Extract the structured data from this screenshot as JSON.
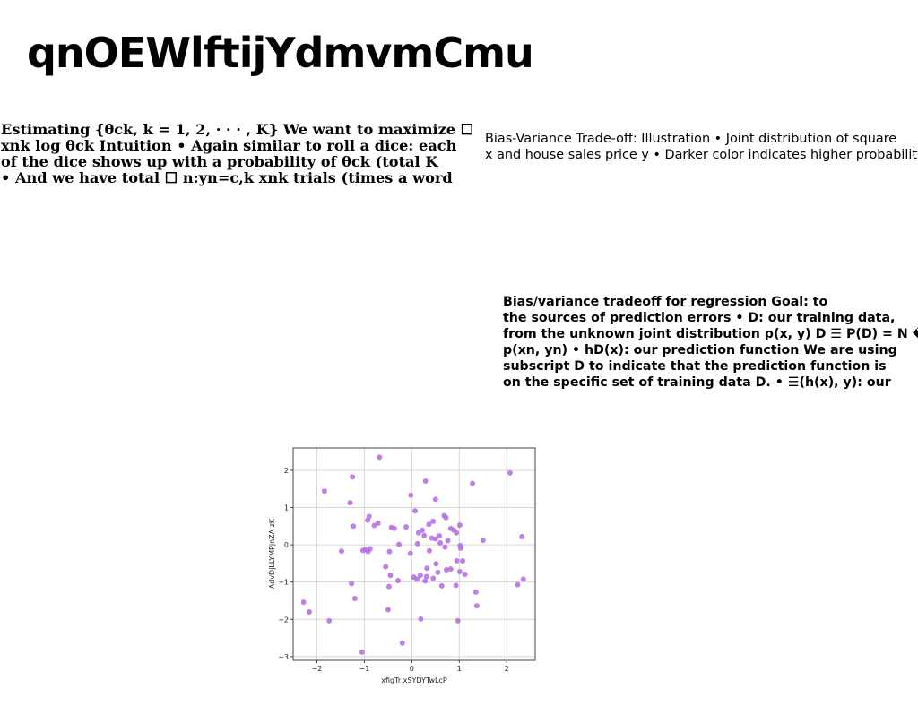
{
  "title": "qnOEWlftijYdmvmCmu",
  "paragraphs": {
    "left": [
      "Estimating {θck, k = 1, 2, · · · , K} We want to maximize ☐",
      "xnk log θck Intuition • Again similar to roll a dice: each",
      "of the dice shows up with a probability of θck (total K",
      "• And we have total ☐ n:yn=c,k xnk trials (times a word"
    ],
    "right_top": [
      "Bias-Variance Trade-off: Illustration • Joint distribution of square",
      "x and house sales price y • Darker color indicates higher probability"
    ],
    "right_mid": [
      "Bias/variance tradeoff for regression Goal: to",
      "the sources of prediction errors • D: our training data,",
      "from the unknown joint distribution p(x, y) D ☰ P(D) = N �",
      "p(xn, yn) • hD(x): our prediction function We are using",
      "subscript D to indicate that the prediction function is",
      "on the specific set of training data D. • ☰(h(x), y): our"
    ]
  },
  "chart_data": {
    "type": "scatter",
    "xlabel": "xfigTr xSYDYTwLcP",
    "ylabel": "AdvDjLLYMPjnZA zK",
    "xlim": [
      -2.5,
      2.6
    ],
    "ylim": [
      -3.1,
      2.6
    ],
    "xticks": [
      -2,
      -1,
      0,
      1,
      2
    ],
    "yticks": [
      -3,
      -2,
      -1,
      0,
      1,
      2
    ],
    "grid": true,
    "point_color": "#b36ae2",
    "points": [
      [
        -0.68,
        2.35
      ],
      [
        -1.25,
        1.82
      ],
      [
        -1.84,
        1.44
      ],
      [
        -1.3,
        1.13
      ],
      [
        -0.02,
        1.33
      ],
      [
        0.29,
        1.71
      ],
      [
        0.5,
        1.22
      ],
      [
        1.28,
        1.65
      ],
      [
        2.07,
        1.93
      ],
      [
        0.07,
        0.91
      ],
      [
        -0.9,
        0.76
      ],
      [
        -0.93,
        0.66
      ],
      [
        -0.79,
        0.52
      ],
      [
        -0.71,
        0.58
      ],
      [
        -0.43,
        0.47
      ],
      [
        -0.37,
        0.44
      ],
      [
        -0.12,
        0.48
      ],
      [
        -1.23,
        0.5
      ],
      [
        0.14,
        0.32
      ],
      [
        0.22,
        0.39
      ],
      [
        0.36,
        0.55
      ],
      [
        0.45,
        0.63
      ],
      [
        0.42,
        0.18
      ],
      [
        0.5,
        0.16
      ],
      [
        0.58,
        0.24
      ],
      [
        0.68,
        0.78
      ],
      [
        0.72,
        0.73
      ],
      [
        0.82,
        0.44
      ],
      [
        0.88,
        0.4
      ],
      [
        0.94,
        0.32
      ],
      [
        1.01,
        0.53
      ],
      [
        0.26,
        0.25
      ],
      [
        0.76,
        0.11
      ],
      [
        1.02,
        -0.02
      ],
      [
        1.03,
        -0.09
      ],
      [
        1.5,
        0.12
      ],
      [
        2.32,
        0.22
      ],
      [
        -1.48,
        -0.17
      ],
      [
        -1.03,
        -0.15
      ],
      [
        -0.98,
        -0.13
      ],
      [
        -0.92,
        -0.18
      ],
      [
        -0.88,
        -0.11
      ],
      [
        -0.27,
        0.01
      ],
      [
        -0.47,
        -0.18
      ],
      [
        0.12,
        0.03
      ],
      [
        0.37,
        -0.16
      ],
      [
        0.6,
        0.05
      ],
      [
        0.7,
        -0.06
      ],
      [
        -0.03,
        -0.23
      ],
      [
        0.51,
        -0.51
      ],
      [
        0.32,
        -0.63
      ],
      [
        -0.55,
        -0.59
      ],
      [
        -0.45,
        -0.82
      ],
      [
        -0.29,
        -0.96
      ],
      [
        -0.48,
        -1.12
      ],
      [
        0.04,
        -0.87
      ],
      [
        0.11,
        -0.92
      ],
      [
        0.18,
        -0.82
      ],
      [
        0.28,
        -0.97
      ],
      [
        0.31,
        -0.85
      ],
      [
        0.45,
        -0.9
      ],
      [
        0.55,
        -0.74
      ],
      [
        0.63,
        -1.1
      ],
      [
        0.73,
        -0.67
      ],
      [
        0.82,
        -0.65
      ],
      [
        0.93,
        -1.09
      ],
      [
        0.95,
        -0.43
      ],
      [
        1.01,
        -0.72
      ],
      [
        1.07,
        -0.43
      ],
      [
        1.12,
        -0.79
      ],
      [
        1.35,
        -1.27
      ],
      [
        1.37,
        -1.64
      ],
      [
        2.23,
        -1.07
      ],
      [
        2.35,
        -0.92
      ],
      [
        -1.27,
        -1.04
      ],
      [
        -1.2,
        -1.44
      ],
      [
        -2.28,
        -1.54
      ],
      [
        -2.16,
        -1.8
      ],
      [
        -1.74,
        -2.04
      ],
      [
        -0.5,
        -1.74
      ],
      [
        0.19,
        -1.99
      ],
      [
        0.97,
        -2.04
      ],
      [
        -0.2,
        -2.64
      ],
      [
        -1.05,
        -2.88
      ]
    ]
  }
}
